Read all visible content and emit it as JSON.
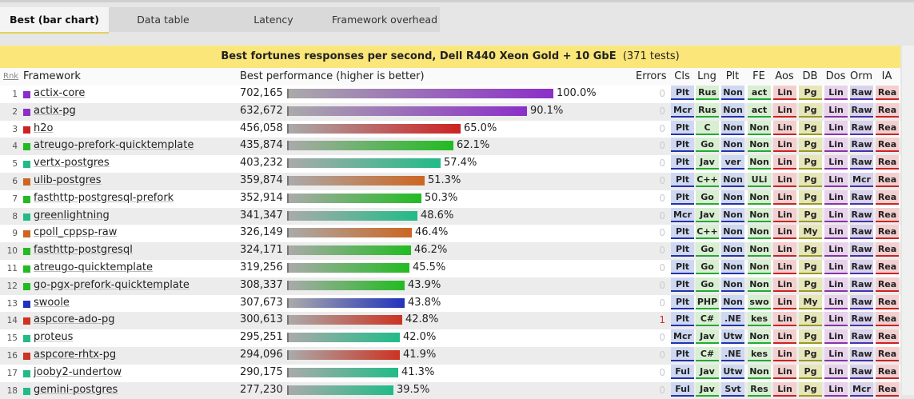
{
  "tabs": [
    {
      "label": "Best (bar chart)",
      "active": true
    },
    {
      "label": "Data table",
      "active": false
    },
    {
      "label": "Latency",
      "active": false
    },
    {
      "label": "Framework overhead",
      "active": false
    }
  ],
  "title": {
    "main": "Best fortunes responses per second, Dell R440 Xeon Gold + 10 GbE",
    "tests": "(371 tests)"
  },
  "headers": {
    "rnk": "Rnk",
    "framework": "Framework",
    "perf": "Best performance (higher is better)",
    "errors": "Errors",
    "codes": [
      "Cls",
      "Lng",
      "Plt",
      "FE",
      "Aos",
      "DB",
      "Dos",
      "Orm",
      "IA"
    ]
  },
  "rows": [
    {
      "rank": "1",
      "name": "actix-core",
      "value": "702,165",
      "pct": 100.0,
      "pct_text": "100.0%",
      "errors": "0",
      "color": "#8b2fc9",
      "codes": [
        "Plt",
        "Rus",
        "Non",
        "act",
        "Lin",
        "Pg",
        "Lin",
        "Raw",
        "Rea"
      ]
    },
    {
      "rank": "2",
      "name": "actix-pg",
      "value": "632,672",
      "pct": 90.1,
      "pct_text": "90.1%",
      "errors": "0",
      "color": "#8b2fc9",
      "codes": [
        "Mcr",
        "Rus",
        "Non",
        "act",
        "Lin",
        "Pg",
        "Lin",
        "Raw",
        "Rea"
      ]
    },
    {
      "rank": "3",
      "name": "h2o",
      "value": "456,058",
      "pct": 65.0,
      "pct_text": "65.0%",
      "errors": "0",
      "color": "#cc2222",
      "codes": [
        "Plt",
        "C",
        "Non",
        "Non",
        "Lin",
        "Pg",
        "Lin",
        "Raw",
        "Rea"
      ]
    },
    {
      "rank": "4",
      "name": "atreugo-prefork-quicktemplate",
      "value": "435,874",
      "pct": 62.1,
      "pct_text": "62.1%",
      "errors": "0",
      "color": "#22bb22",
      "codes": [
        "Plt",
        "Go",
        "Non",
        "Non",
        "Lin",
        "Pg",
        "Lin",
        "Raw",
        "Rea"
      ]
    },
    {
      "rank": "5",
      "name": "vertx-postgres",
      "value": "403,232",
      "pct": 57.4,
      "pct_text": "57.4%",
      "errors": "0",
      "color": "#22bb88",
      "codes": [
        "Plt",
        "Jav",
        "ver",
        "Non",
        "Lin",
        "Pg",
        "Lin",
        "Raw",
        "Rea"
      ]
    },
    {
      "rank": "6",
      "name": "ulib-postgres",
      "value": "359,874",
      "pct": 51.3,
      "pct_text": "51.3%",
      "errors": "0",
      "color": "#cc6622",
      "codes": [
        "Plt",
        "C++",
        "Non",
        "ULi",
        "Lin",
        "Pg",
        "Lin",
        "Mcr",
        "Rea"
      ]
    },
    {
      "rank": "7",
      "name": "fasthttp-postgresql-prefork",
      "value": "352,914",
      "pct": 50.3,
      "pct_text": "50.3%",
      "errors": "0",
      "color": "#22bb22",
      "codes": [
        "Plt",
        "Go",
        "Non",
        "Non",
        "Lin",
        "Pg",
        "Lin",
        "Raw",
        "Rea"
      ]
    },
    {
      "rank": "8",
      "name": "greenlightning",
      "value": "341,347",
      "pct": 48.6,
      "pct_text": "48.6%",
      "errors": "0",
      "color": "#22bb88",
      "codes": [
        "Mcr",
        "Jav",
        "Non",
        "Non",
        "Lin",
        "Pg",
        "Lin",
        "Raw",
        "Rea"
      ]
    },
    {
      "rank": "9",
      "name": "cpoll_cppsp-raw",
      "value": "326,149",
      "pct": 46.4,
      "pct_text": "46.4%",
      "errors": "0",
      "color": "#cc6622",
      "codes": [
        "Plt",
        "C++",
        "Non",
        "Non",
        "Lin",
        "My",
        "Lin",
        "Raw",
        "Rea"
      ]
    },
    {
      "rank": "10",
      "name": "fasthttp-postgresql",
      "value": "324,171",
      "pct": 46.2,
      "pct_text": "46.2%",
      "errors": "0",
      "color": "#22bb22",
      "codes": [
        "Plt",
        "Go",
        "Non",
        "Non",
        "Lin",
        "Pg",
        "Lin",
        "Raw",
        "Rea"
      ]
    },
    {
      "rank": "11",
      "name": "atreugo-quicktemplate",
      "value": "319,256",
      "pct": 45.5,
      "pct_text": "45.5%",
      "errors": "0",
      "color": "#22bb22",
      "codes": [
        "Plt",
        "Go",
        "Non",
        "Non",
        "Lin",
        "Pg",
        "Lin",
        "Raw",
        "Rea"
      ]
    },
    {
      "rank": "12",
      "name": "go-pgx-prefork-quicktemplate",
      "value": "308,337",
      "pct": 43.9,
      "pct_text": "43.9%",
      "errors": "0",
      "color": "#22bb22",
      "codes": [
        "Plt",
        "Go",
        "Non",
        "Non",
        "Lin",
        "Pg",
        "Lin",
        "Raw",
        "Rea"
      ]
    },
    {
      "rank": "13",
      "name": "swoole",
      "value": "307,673",
      "pct": 43.8,
      "pct_text": "43.8%",
      "errors": "0",
      "color": "#2233bb",
      "codes": [
        "Plt",
        "PHP",
        "Non",
        "swo",
        "Lin",
        "My",
        "Lin",
        "Raw",
        "Rea"
      ]
    },
    {
      "rank": "14",
      "name": "aspcore-ado-pg",
      "value": "300,613",
      "pct": 42.8,
      "pct_text": "42.8%",
      "errors": "1",
      "color": "#cc3322",
      "codes": [
        "Plt",
        "C#",
        ".NE",
        "kes",
        "Lin",
        "Pg",
        "Lin",
        "Raw",
        "Rea"
      ]
    },
    {
      "rank": "15",
      "name": "proteus",
      "value": "295,251",
      "pct": 42.0,
      "pct_text": "42.0%",
      "errors": "0",
      "color": "#22bb88",
      "codes": [
        "Mcr",
        "Jav",
        "Utw",
        "Non",
        "Lin",
        "Pg",
        "Lin",
        "Raw",
        "Rea"
      ]
    },
    {
      "rank": "16",
      "name": "aspcore-rhtx-pg",
      "value": "294,096",
      "pct": 41.9,
      "pct_text": "41.9%",
      "errors": "0",
      "color": "#cc3322",
      "codes": [
        "Plt",
        "C#",
        ".NE",
        "kes",
        "Lin",
        "Pg",
        "Lin",
        "Raw",
        "Rea"
      ]
    },
    {
      "rank": "17",
      "name": "jooby2-undertow",
      "value": "290,175",
      "pct": 41.3,
      "pct_text": "41.3%",
      "errors": "0",
      "color": "#22bb88",
      "codes": [
        "Ful",
        "Jav",
        "Utw",
        "Non",
        "Lin",
        "Pg",
        "Lin",
        "Raw",
        "Rea"
      ]
    },
    {
      "rank": "18",
      "name": "gemini-postgres",
      "value": "277,230",
      "pct": 39.5,
      "pct_text": "39.5%",
      "errors": "0",
      "color": "#22bb88",
      "codes": [
        "Ful",
        "Jav",
        "Svt",
        "Res",
        "Lin",
        "Pg",
        "Lin",
        "Mcr",
        "Rea"
      ]
    }
  ],
  "code_colors": {
    "Cls": {
      "bg": "#cfd8f2",
      "line": "#2233aa"
    },
    "Lng": {
      "bg": "#d8efd2",
      "line": "#22aa33"
    },
    "Plt": {
      "bg": "#cfd8f2",
      "line": "#2233aa"
    },
    "FE": {
      "bg": "#d8efd2",
      "line": "#22aa33"
    },
    "Aos": {
      "bg": "#f4cfcf",
      "line": "#cc2222"
    },
    "DB": {
      "bg": "#e6e6b8",
      "line": "#999922"
    },
    "Dos": {
      "bg": "#e8d2ec",
      "line": "#8833aa"
    },
    "Orm": {
      "bg": "#d8d2ec",
      "line": "#4433aa"
    },
    "IA": {
      "bg": "#f4cfcf",
      "line": "#cc2222"
    }
  }
}
